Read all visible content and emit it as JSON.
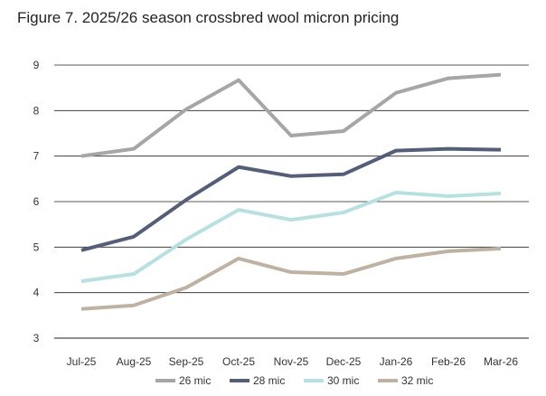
{
  "chart_data": {
    "type": "line",
    "title": "Figure 7. 2025/26 season crossbred wool micron pricing",
    "xlabel": "",
    "ylabel": "",
    "categories": [
      "Jul-25",
      "Aug-25",
      "Sep-25",
      "Oct-25",
      "Nov-25",
      "Dec-25",
      "Jan-26",
      "Feb-26",
      "Mar-26"
    ],
    "ylim": [
      3,
      9
    ],
    "yticks": [
      3,
      4,
      5,
      6,
      7,
      8,
      9
    ],
    "grid": true,
    "legend": "bottom",
    "series": [
      {
        "name": "26 mic",
        "color": "#a6a6a6",
        "values": [
          7.0,
          7.16,
          8.03,
          8.67,
          7.45,
          7.55,
          8.39,
          8.71,
          8.79
        ]
      },
      {
        "name": "28 mic",
        "color": "#555e78",
        "values": [
          4.93,
          5.23,
          6.04,
          6.76,
          6.56,
          6.6,
          7.12,
          7.16,
          7.14
        ]
      },
      {
        "name": "30 mic",
        "color": "#b8e0e0",
        "values": [
          4.25,
          4.41,
          5.17,
          5.82,
          5.6,
          5.76,
          6.2,
          6.12,
          6.18
        ]
      },
      {
        "name": "32 mic",
        "color": "#c0b2a3",
        "values": [
          3.64,
          3.72,
          4.11,
          4.75,
          4.45,
          4.41,
          4.75,
          4.91,
          4.97
        ]
      }
    ]
  }
}
